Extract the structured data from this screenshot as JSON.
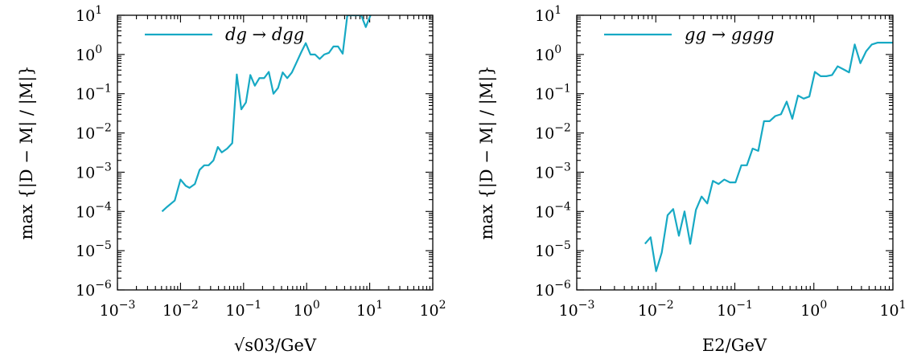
{
  "chart_data": [
    {
      "type": "line",
      "xscale": "log",
      "yscale": "log",
      "xlim": [
        0.001,
        100
      ],
      "ylim": [
        1e-06,
        10
      ],
      "xlabel": "√s03/GeV",
      "ylabel": "max {|D − M| / |M|}",
      "xticks": [
        {
          "base": "10",
          "exp": "−3"
        },
        {
          "base": "10",
          "exp": "−2"
        },
        {
          "base": "10",
          "exp": "−1"
        },
        {
          "base": "10",
          "exp": "0"
        },
        {
          "base": "10",
          "exp": "1"
        },
        {
          "base": "10",
          "exp": "2"
        }
      ],
      "yticks": [
        {
          "base": "10",
          "exp": "−6"
        },
        {
          "base": "10",
          "exp": "−5"
        },
        {
          "base": "10",
          "exp": "−4"
        },
        {
          "base": "10",
          "exp": "−3"
        },
        {
          "base": "10",
          "exp": "−2"
        },
        {
          "base": "10",
          "exp": "−1"
        },
        {
          "base": "10",
          "exp": "0"
        },
        {
          "base": "10",
          "exp": "1"
        }
      ],
      "legend_position": "top-left",
      "grid": false,
      "series": [
        {
          "name": "dg → dgg",
          "color": "#17a9c4",
          "x": [
            0.0051,
            0.0061,
            0.0081,
            0.01,
            0.0121,
            0.0139,
            0.0169,
            0.0201,
            0.0238,
            0.0279,
            0.0333,
            0.0391,
            0.0451,
            0.055,
            0.0661,
            0.0781,
            0.0921,
            0.109,
            0.128,
            0.151,
            0.178,
            0.212,
            0.251,
            0.298,
            0.352,
            0.417,
            0.493,
            0.584,
            0.692,
            0.818,
            0.968,
            1.15,
            1.36,
            1.61,
            1.9,
            2.25,
            2.66,
            3.15,
            3.73,
            4.42,
            5.23,
            6.19,
            7.33,
            8.67,
            10.3
          ],
          "y": [
            0.0001,
            0.00013,
            0.00019,
            0.00065,
            0.00045,
            0.0004,
            0.0005,
            0.00115,
            0.0015,
            0.0015,
            0.002,
            0.0044,
            0.0032,
            0.004,
            0.0055,
            0.31,
            0.04,
            0.06,
            0.3,
            0.16,
            0.25,
            0.25,
            0.36,
            0.1,
            0.14,
            0.35,
            0.25,
            0.35,
            0.63,
            1.13,
            1.95,
            1.0,
            1.0,
            0.77,
            1.0,
            1.1,
            1.6,
            1.6,
            1.05,
            10,
            10,
            10,
            10,
            5,
            10
          ]
        }
      ]
    },
    {
      "type": "line",
      "xscale": "log",
      "yscale": "log",
      "xlim": [
        0.001,
        10
      ],
      "ylim": [
        1e-06,
        10
      ],
      "xlabel": "E2/GeV",
      "ylabel": "max {|D − M| / |M|}",
      "xticks": [
        {
          "base": "10",
          "exp": "−3"
        },
        {
          "base": "10",
          "exp": "−2"
        },
        {
          "base": "10",
          "exp": "−1"
        },
        {
          "base": "10",
          "exp": "0"
        },
        {
          "base": "10",
          "exp": "1"
        }
      ],
      "yticks": [
        {
          "base": "10",
          "exp": "−6"
        },
        {
          "base": "10",
          "exp": "−5"
        },
        {
          "base": "10",
          "exp": "−4"
        },
        {
          "base": "10",
          "exp": "−3"
        },
        {
          "base": "10",
          "exp": "−2"
        },
        {
          "base": "10",
          "exp": "−1"
        },
        {
          "base": "10",
          "exp": "0"
        },
        {
          "base": "10",
          "exp": "1"
        }
      ],
      "legend_position": "top-left",
      "grid": false,
      "series": [
        {
          "name": "gg → gggg",
          "color": "#17a9c4",
          "x": [
            0.0073,
            0.0086,
            0.0101,
            0.0119,
            0.0141,
            0.0166,
            0.0196,
            0.0231,
            0.0273,
            0.0322,
            0.038,
            0.0448,
            0.0528,
            0.0623,
            0.0735,
            0.0867,
            0.102,
            0.121,
            0.142,
            0.168,
            0.198,
            0.234,
            0.276,
            0.325,
            0.384,
            0.453,
            0.534,
            0.63,
            0.743,
            0.877,
            1.03,
            1.22,
            1.44,
            1.7,
            2.0,
            2.36,
            2.79,
            3.29,
            3.88,
            4.58,
            5.4,
            6.37,
            7.52,
            8.87,
            10.3
          ],
          "y": [
            1.5e-05,
            2.2e-05,
            3e-06,
            9e-06,
            8e-05,
            0.000115,
            2.4e-05,
            0.0001,
            1.5e-05,
            0.00011,
            0.00024,
            0.00016,
            0.0006,
            0.0005,
            0.00065,
            0.00055,
            0.00055,
            0.0015,
            0.0015,
            0.004,
            0.0035,
            0.02,
            0.02,
            0.027,
            0.03,
            0.063,
            0.023,
            0.09,
            0.075,
            0.085,
            0.36,
            0.28,
            0.28,
            0.3,
            0.5,
            0.42,
            0.35,
            1.8,
            0.6,
            1.2,
            1.8,
            2.0,
            2.0,
            2.0,
            2.0
          ]
        }
      ]
    }
  ]
}
